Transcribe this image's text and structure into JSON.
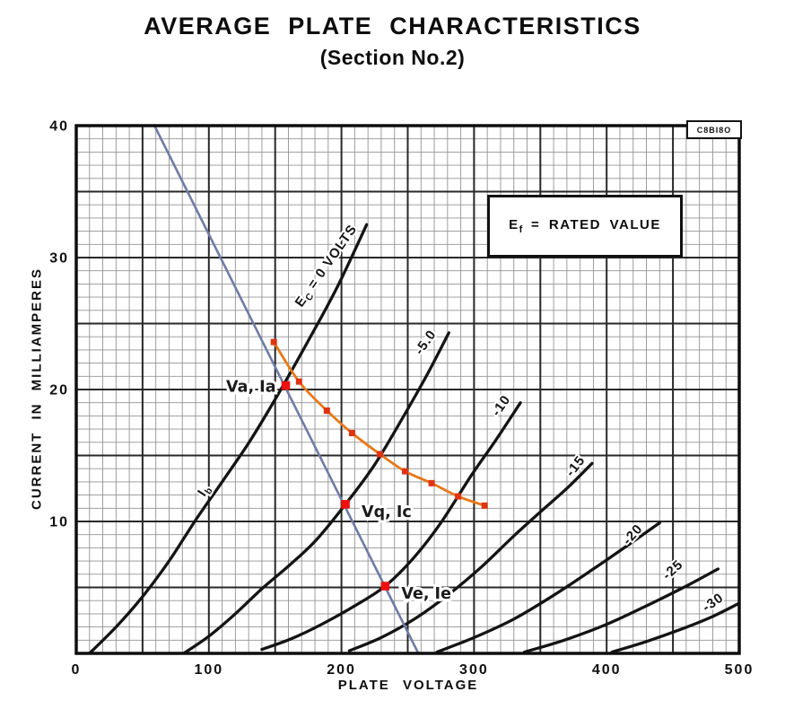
{
  "page": {
    "title": "AVERAGE PLATE CHARACTERISTICS",
    "subtitle": "(Section No.2)",
    "corner_code": "C8BI8O"
  },
  "legend": {
    "e": "E",
    "sub": "f",
    "rest": " = RATED VALUE"
  },
  "axes": {
    "x_label": "PLATE VOLTAGE",
    "y_label": "CURRENT IN MILLIAMPERES",
    "x_ticks": [
      0,
      100,
      200,
      300,
      400,
      500
    ],
    "y_ticks": [
      10,
      20,
      30,
      40
    ],
    "x_range": [
      0,
      500
    ],
    "y_range": [
      0,
      40
    ],
    "x_minor_step": 10,
    "y_minor_step": 1,
    "x_major_step": 50,
    "y_major_step": 5
  },
  "colors": {
    "ink": "#141414",
    "load_line": "#6d7ca8",
    "dissipation_curve": "#e87818",
    "dissipation_marker": "#e03312",
    "operating_point": "#ee0f0f"
  },
  "chart_data": {
    "type": "line",
    "title": "AVERAGE PLATE CHARACTERISTICS (Section No.2)",
    "xlabel": "PLATE VOLTAGE",
    "ylabel": "CURRENT IN MILLIAMPERES",
    "xlim": [
      0,
      500
    ],
    "ylim": [
      0,
      40
    ],
    "grid": true,
    "series": [
      {
        "id": "ec-0",
        "name": "Ec = 0 VOLTS",
        "role": "grid-voltage-curve",
        "points": [
          [
            10,
            0
          ],
          [
            30,
            2
          ],
          [
            50,
            4.3
          ],
          [
            70,
            7
          ],
          [
            90,
            10.1
          ],
          [
            110,
            13
          ],
          [
            131,
            16.1
          ],
          [
            152,
            19.6
          ],
          [
            175,
            23.7
          ],
          [
            197,
            27.8
          ],
          [
            219,
            32.5
          ]
        ]
      },
      {
        "id": "ec-minus-5",
        "name": "Ec = -5.0 VOLTS",
        "role": "grid-voltage-curve",
        "points": [
          [
            81,
            0
          ],
          [
            100,
            1.3
          ],
          [
            120,
            3
          ],
          [
            140,
            4.9
          ],
          [
            161,
            6.7
          ],
          [
            181,
            8.6
          ],
          [
            203,
            11.3
          ],
          [
            225,
            14.3
          ],
          [
            247,
            18
          ],
          [
            265,
            21.2
          ],
          [
            281,
            24.3
          ]
        ]
      },
      {
        "id": "ec-minus-10",
        "name": "Ec = -10 VOLTS",
        "role": "grid-voltage-curve",
        "points": [
          [
            140,
            0.3
          ],
          [
            162,
            1.1
          ],
          [
            185,
            2.2
          ],
          [
            210,
            3.6
          ],
          [
            233,
            5.1
          ],
          [
            255,
            7.3
          ],
          [
            275,
            9.9
          ],
          [
            298,
            13.5
          ],
          [
            316,
            16.1
          ],
          [
            335,
            19
          ]
        ]
      },
      {
        "id": "ec-minus-15",
        "name": "Ec = -15 VOLTS",
        "role": "grid-voltage-curve",
        "points": [
          [
            206,
            0.2
          ],
          [
            230,
            1.2
          ],
          [
            255,
            2.6
          ],
          [
            280,
            4.4
          ],
          [
            305,
            6.5
          ],
          [
            330,
            8.9
          ],
          [
            352,
            10.9
          ],
          [
            371,
            12.6
          ],
          [
            389,
            14.4
          ]
        ]
      },
      {
        "id": "ec-minus-20",
        "name": "Ec = -20 VOLTS",
        "role": "grid-voltage-curve",
        "points": [
          [
            272,
            0.1
          ],
          [
            300,
            1.2
          ],
          [
            330,
            2.6
          ],
          [
            360,
            4.4
          ],
          [
            390,
            6.4
          ],
          [
            416,
            8.2
          ],
          [
            440,
            9.9
          ]
        ]
      },
      {
        "id": "ec-minus-25",
        "name": "Ec = -25 VOLTS",
        "role": "grid-voltage-curve",
        "points": [
          [
            338,
            0.1
          ],
          [
            368,
            1
          ],
          [
            400,
            2.2
          ],
          [
            432,
            3.7
          ],
          [
            460,
            5.1
          ],
          [
            484,
            6.4
          ]
        ]
      },
      {
        "id": "ec-minus-30",
        "name": "Ec = -30 VOLTS",
        "role": "grid-voltage-curve",
        "points": [
          [
            404,
            0.1
          ],
          [
            430,
            0.9
          ],
          [
            458,
            1.9
          ],
          [
            480,
            2.8
          ],
          [
            500,
            3.8
          ]
        ]
      },
      {
        "id": "load-line",
        "name": "load line",
        "role": "load-line",
        "points": [
          [
            59,
            40
          ],
          [
            258,
            0
          ]
        ]
      },
      {
        "id": "dissipation-curve",
        "name": "dissipation limit curve",
        "role": "overlay-curve",
        "marker": "square",
        "points": [
          [
            149,
            23.6
          ],
          [
            168,
            20.6
          ],
          [
            189,
            18.4
          ],
          [
            208,
            16.7
          ],
          [
            229,
            15.1
          ],
          [
            248,
            13.8
          ],
          [
            268,
            12.9
          ],
          [
            288,
            11.9
          ],
          [
            308,
            11.2
          ]
        ]
      }
    ],
    "curve_labels": [
      {
        "id": "label-ec-0",
        "parts": [
          {
            "t": "E"
          },
          {
            "t": "C",
            "sub": true
          },
          {
            "t": " = 0  VOLTS"
          }
        ],
        "v": 191,
        "i": 29.2,
        "rot": -55
      },
      {
        "id": "label-ec-minus-5",
        "text": "-5.0",
        "v": 266,
        "i": 23.4,
        "rot": -55
      },
      {
        "id": "label-ec-minus-10",
        "text": "-10",
        "v": 323,
        "i": 18.6,
        "rot": -55
      },
      {
        "id": "label-ec-minus-15",
        "text": "-15",
        "v": 379,
        "i": 14.0,
        "rot": -52
      },
      {
        "id": "label-ec-minus-20",
        "text": "-20",
        "v": 422,
        "i": 8.8,
        "rot": -48
      },
      {
        "id": "label-ec-minus-25",
        "text": "-25",
        "v": 452,
        "i": 6.1,
        "rot": -42
      },
      {
        "id": "label-ec-minus-30",
        "text": "-30",
        "v": 482,
        "i": 3.6,
        "rot": -35
      },
      {
        "id": "label-ib",
        "parts": [
          {
            "t": "I"
          },
          {
            "t": "b",
            "sub": true
          }
        ],
        "v": 99,
        "i": 12.2,
        "rot": -57
      }
    ],
    "operating_points": [
      {
        "id": "va-ia",
        "label": "Va, Ia",
        "v": 158,
        "i": 20.3,
        "label_side": "left"
      },
      {
        "id": "vq-ic",
        "label": "Vq, Ic",
        "v": 203,
        "i": 11.3,
        "label_side": "right"
      },
      {
        "id": "ve-ie",
        "label": "Ve, Ie",
        "v": 233,
        "i": 5.1,
        "label_side": "right"
      }
    ]
  }
}
